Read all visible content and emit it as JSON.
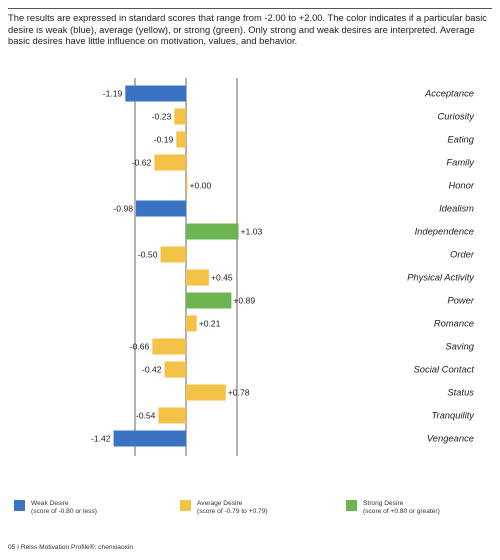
{
  "intro": {
    "text": "The results are expressed in standard scores that range from -2.00 to +2.00. The color indicates if a particular basic desire is weak (blue), average (yellow), or strong (green). Only strong and weak desires are interpreted. Average basic desires have little influence on motivation, values, and behavior."
  },
  "colors": {
    "weak": "#3a73c4",
    "average": "#f4c247",
    "strong": "#6cb552"
  },
  "chart_data": {
    "type": "bar",
    "orientation": "horizontal",
    "xlim": [
      -2.0,
      2.0
    ],
    "reference_lines": [
      -1.0,
      0.0,
      1.0
    ],
    "categories": [
      "Acceptance",
      "Curiosity",
      "Eating",
      "Family",
      "Honor",
      "Idealism",
      "Independence",
      "Order",
      "Physical Activity",
      "Power",
      "Romance",
      "Saving",
      "Social Contact",
      "Status",
      "Tranquility",
      "Vengeance"
    ],
    "values": [
      -1.19,
      -0.23,
      -0.19,
      -0.62,
      0.0,
      -0.98,
      1.03,
      -0.5,
      0.45,
      0.89,
      0.21,
      -0.66,
      -0.42,
      0.78,
      -0.54,
      -1.42
    ],
    "value_labels": [
      "-1.19",
      "-0.23",
      "-0.19",
      "-0.62",
      "+0.00",
      "-0.98",
      "+1.03",
      "-0.50",
      "+0.45",
      "+0.89",
      "+0.21",
      "-0.66",
      "-0.42",
      "+0.78",
      "-0.54",
      "-1.42"
    ],
    "levels": [
      "weak",
      "average",
      "average",
      "average",
      "average",
      "weak",
      "strong",
      "average",
      "average",
      "strong",
      "average",
      "average",
      "average",
      "average",
      "average",
      "weak"
    ]
  },
  "legend": {
    "weak": {
      "title": "Weak Desire",
      "range": "(score of -0.80 or less)"
    },
    "average": {
      "title": "Average Desire",
      "range": "(score of -0.79 to +0.79)"
    },
    "strong": {
      "title": "Strong Desire",
      "range": "(score of +0.80 or greater)"
    }
  },
  "footer": {
    "text": "05 I Reiss Motivation Profile®: chenxiaoxin"
  }
}
